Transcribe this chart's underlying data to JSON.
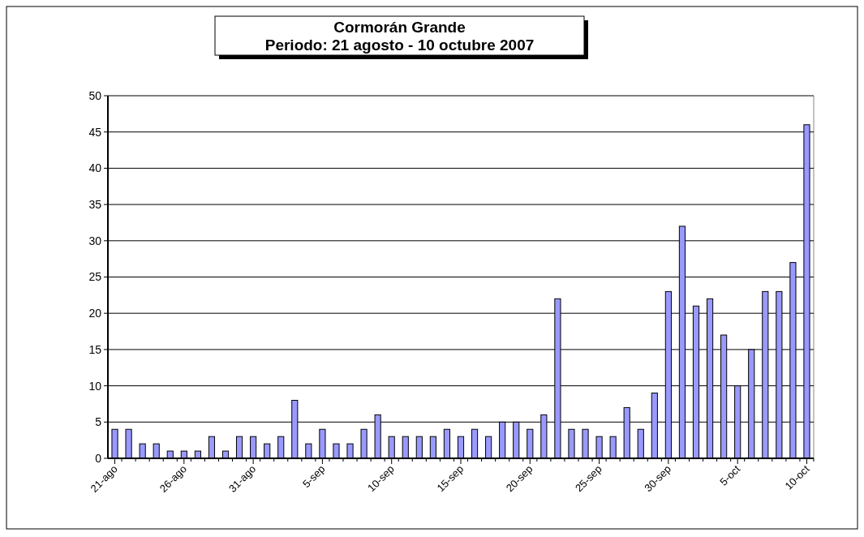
{
  "chart_data": {
    "type": "bar",
    "title": "Cormorán Grande",
    "subtitle": "Periodo: 21 agosto - 10 octubre 2007",
    "x": [
      "2007-08-21",
      "2007-08-22",
      "2007-08-23",
      "2007-08-24",
      "2007-08-25",
      "2007-08-26",
      "2007-08-27",
      "2007-08-28",
      "2007-08-29",
      "2007-08-30",
      "2007-08-31",
      "2007-09-01",
      "2007-09-02",
      "2007-09-03",
      "2007-09-04",
      "2007-09-05",
      "2007-09-06",
      "2007-09-07",
      "2007-09-08",
      "2007-09-09",
      "2007-09-10",
      "2007-09-11",
      "2007-09-12",
      "2007-09-13",
      "2007-09-14",
      "2007-09-15",
      "2007-09-16",
      "2007-09-17",
      "2007-09-18",
      "2007-09-19",
      "2007-09-20",
      "2007-09-21",
      "2007-09-22",
      "2007-09-23",
      "2007-09-24",
      "2007-09-25",
      "2007-09-26",
      "2007-09-27",
      "2007-09-28",
      "2007-09-29",
      "2007-09-30",
      "2007-10-01",
      "2007-10-02",
      "2007-10-03",
      "2007-10-04",
      "2007-10-05",
      "2007-10-06",
      "2007-10-07",
      "2007-10-08",
      "2007-10-09",
      "2007-10-10"
    ],
    "values": [
      4,
      4,
      2,
      2,
      1,
      1,
      1,
      3,
      1,
      3,
      3,
      2,
      3,
      8,
      2,
      4,
      2,
      2,
      4,
      6,
      3,
      3,
      3,
      3,
      4,
      3,
      4,
      3,
      5,
      5,
      4,
      6,
      22,
      4,
      4,
      3,
      3,
      7,
      4,
      9,
      23,
      32,
      21,
      22,
      17,
      10,
      15,
      23,
      23,
      27,
      46
    ],
    "color": "#9999ff",
    "xlim": [
      "2007-08-20T12:00",
      "2007-10-10T12:00"
    ],
    "xticks": [
      {
        "value": "2007-08-21",
        "label": "21-ago"
      },
      {
        "value": "2007-08-26",
        "label": "26-ago"
      },
      {
        "value": "2007-08-31",
        "label": "31-ago"
      },
      {
        "value": "2007-09-05",
        "label": "5-sep"
      },
      {
        "value": "2007-09-10",
        "label": "10-sep"
      },
      {
        "value": "2007-09-15",
        "label": "15-sep"
      },
      {
        "value": "2007-09-20",
        "label": "20-sep"
      },
      {
        "value": "2007-09-25",
        "label": "25-sep"
      },
      {
        "value": "2007-09-30",
        "label": "30-sep"
      },
      {
        "value": "2007-10-05",
        "label": "5-oct"
      },
      {
        "value": "2007-10-10",
        "label": "10-oct"
      }
    ],
    "ylim": [
      0,
      50
    ],
    "yticks": [
      0,
      5,
      10,
      15,
      20,
      25,
      30,
      35,
      40,
      45,
      50
    ],
    "grid": "y"
  }
}
